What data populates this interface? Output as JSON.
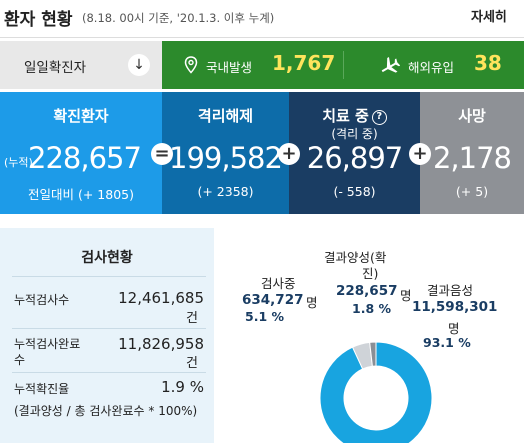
{
  "header": {
    "title": "환자 현황",
    "subtitle": "(8.18. 00시 기준, '20.1.3. 이후 누계)",
    "more_label": "자세히"
  },
  "daily": {
    "label": "일일확진자",
    "arrow_glyph": "↓",
    "domestic_label": "국내발생",
    "domestic_value": "1,767",
    "abroad_label": "해외유입",
    "abroad_value": "38"
  },
  "stats": {
    "confirmed": {
      "title": "확진환자",
      "prefix": "(누적)",
      "value": "228,657",
      "delta": "전일대비 (+ 1805)"
    },
    "released": {
      "title": "격리해제",
      "value": "199,582",
      "delta": "(+ 2358)"
    },
    "treatment": {
      "title": "치료 중",
      "subtitle": "(격리 중)",
      "help_glyph": "?",
      "value": "26,897",
      "delta": "(- 558)"
    },
    "deaths": {
      "title": "사망",
      "value": "2,178",
      "delta": "(+ 5)"
    },
    "op_equal": "=",
    "op_plus": "+"
  },
  "tests": {
    "title": "검사현황",
    "rows": [
      {
        "label": "누적검사수",
        "value": "12,461,685",
        "unit": "건"
      },
      {
        "label_line1": "누적검사완료",
        "label_line2": "수",
        "value": "11,826,958",
        "unit": "건"
      },
      {
        "label": "누적확진율",
        "value": "1.9 %"
      }
    ],
    "note": "(결과양성 / 총 검사완료수 * 100%)"
  },
  "pie": {
    "testing_label": "검사중",
    "testing_value": "634,727",
    "testing_unit": "명",
    "testing_pct": "5.1 %",
    "positive_label_line1": "결과양성(확",
    "positive_label_line2": "진)",
    "positive_value": "228,657",
    "positive_unit": "명",
    "positive_pct": "1.8 %",
    "negative_label": "결과음성",
    "negative_value": "11,598,301",
    "negative_unit": "명",
    "negative_pct": "93.1 %"
  },
  "chart_data": {
    "type": "pie",
    "categories": [
      "검사중",
      "결과양성(확진)",
      "결과음성"
    ],
    "values": [
      5.1,
      1.8,
      93.1
    ],
    "counts": [
      634727,
      228657,
      11598301
    ],
    "colors": [
      "#cfd3d8",
      "#8a8f96",
      "#18a4e0"
    ]
  }
}
